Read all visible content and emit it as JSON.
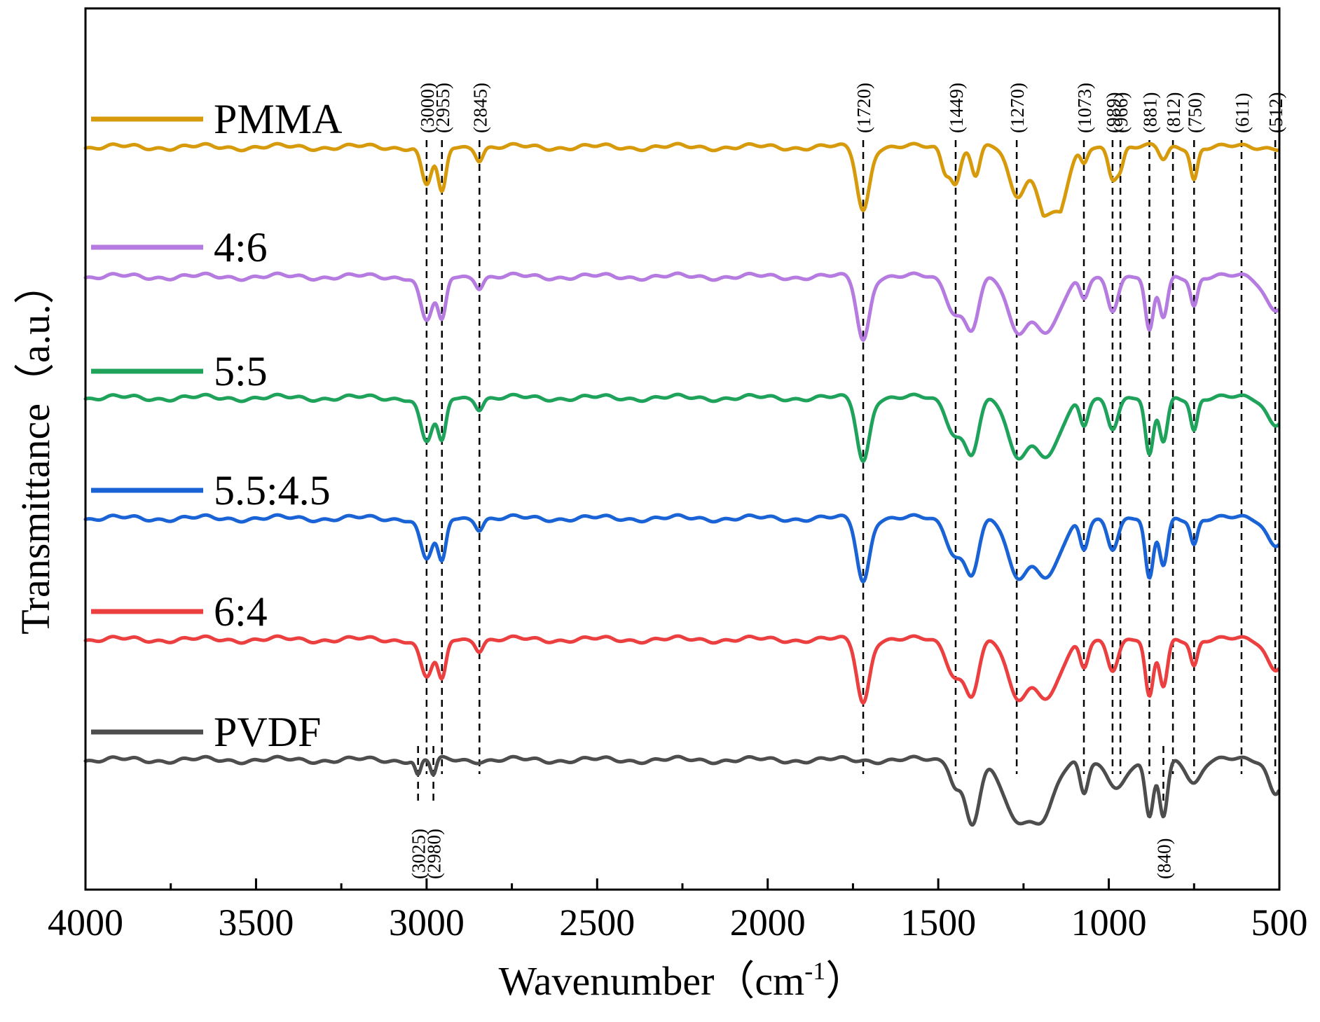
{
  "chart_data": {
    "type": "line",
    "title": "",
    "xlabel": "Wavenumber（cm",
    "xlabel_sup": "-1",
    "xlabel_close": "）",
    "ylabel": "Transmittance（a.u.）",
    "xlim": [
      4000,
      500
    ],
    "x_ticks": [
      {
        "value": 4000,
        "label": "4000"
      },
      {
        "value": 3500,
        "label": "3500"
      },
      {
        "value": 3000,
        "label": "3000"
      },
      {
        "value": 2500,
        "label": "2500"
      },
      {
        "value": 2000,
        "label": "2000"
      },
      {
        "value": 1500,
        "label": "1500"
      },
      {
        "value": 1000,
        "label": "1000"
      },
      {
        "value": 500,
        "label": "500"
      }
    ],
    "legend_position": "left, stacked beside each curve",
    "series": [
      {
        "name": "PMMA",
        "color": "#d69a0b",
        "offset": 5,
        "amp": 1.0,
        "dips": [
          [
            3000,
            0.6,
            15
          ],
          [
            2955,
            0.75,
            12
          ],
          [
            2845,
            0.18,
            10
          ],
          [
            1720,
            1.0,
            18
          ],
          [
            1480,
            0.35,
            12
          ],
          [
            1449,
            0.55,
            14
          ],
          [
            1390,
            0.45,
            12
          ],
          [
            1270,
            0.75,
            25
          ],
          [
            1190,
            0.7,
            30
          ],
          [
            1150,
            0.9,
            30
          ],
          [
            1073,
            0.25,
            10
          ],
          [
            989,
            0.45,
            12
          ],
          [
            966,
            0.3,
            10
          ],
          [
            840,
            0.2,
            12
          ],
          [
            750,
            0.5,
            10
          ]
        ]
      },
      {
        "name": "4:6",
        "color": "#b57be0",
        "offset": 4,
        "amp": 1.0,
        "dips": [
          [
            3000,
            0.7,
            18
          ],
          [
            2955,
            0.7,
            12
          ],
          [
            2845,
            0.15,
            10
          ],
          [
            1720,
            1.0,
            18
          ],
          [
            1450,
            0.55,
            25
          ],
          [
            1400,
            0.75,
            20
          ],
          [
            1270,
            0.8,
            30
          ],
          [
            1180,
            0.85,
            40
          ],
          [
            1073,
            0.35,
            12
          ],
          [
            989,
            0.5,
            15
          ],
          [
            881,
            0.9,
            12
          ],
          [
            840,
            0.65,
            12
          ],
          [
            750,
            0.45,
            10
          ],
          [
            512,
            0.5,
            30
          ]
        ]
      },
      {
        "name": "5:5",
        "color": "#1fa35a",
        "offset": 3,
        "amp": 1.0,
        "dips": [
          [
            3000,
            0.7,
            18
          ],
          [
            2955,
            0.7,
            12
          ],
          [
            2845,
            0.15,
            10
          ],
          [
            1720,
            1.0,
            18
          ],
          [
            1450,
            0.55,
            25
          ],
          [
            1400,
            0.8,
            20
          ],
          [
            1270,
            0.85,
            30
          ],
          [
            1180,
            0.9,
            40
          ],
          [
            1073,
            0.45,
            12
          ],
          [
            989,
            0.45,
            15
          ],
          [
            881,
            0.95,
            12
          ],
          [
            840,
            0.7,
            12
          ],
          [
            750,
            0.5,
            10
          ],
          [
            512,
            0.4,
            25
          ]
        ]
      },
      {
        "name": "5.5:4.5",
        "color": "#1a63d6",
        "offset": 2,
        "amp": 1.0,
        "dips": [
          [
            3000,
            0.65,
            18
          ],
          [
            2955,
            0.7,
            12
          ],
          [
            2845,
            0.15,
            10
          ],
          [
            1720,
            1.0,
            18
          ],
          [
            1450,
            0.55,
            25
          ],
          [
            1400,
            0.8,
            20
          ],
          [
            1270,
            0.85,
            30
          ],
          [
            1180,
            0.9,
            40
          ],
          [
            1073,
            0.5,
            12
          ],
          [
            989,
            0.45,
            15
          ],
          [
            881,
            1.0,
            12
          ],
          [
            840,
            0.75,
            12
          ],
          [
            750,
            0.4,
            10
          ],
          [
            512,
            0.4,
            25
          ]
        ]
      },
      {
        "name": "6:4",
        "color": "#ec3f3f",
        "offset": 1,
        "amp": 1.0,
        "dips": [
          [
            3000,
            0.6,
            18
          ],
          [
            2955,
            0.65,
            12
          ],
          [
            2845,
            0.15,
            10
          ],
          [
            1720,
            1.0,
            18
          ],
          [
            1450,
            0.55,
            25
          ],
          [
            1400,
            0.8,
            20
          ],
          [
            1270,
            0.85,
            30
          ],
          [
            1180,
            0.9,
            40
          ],
          [
            1073,
            0.45,
            12
          ],
          [
            989,
            0.45,
            15
          ],
          [
            881,
            0.95,
            12
          ],
          [
            840,
            0.75,
            12
          ],
          [
            750,
            0.4,
            10
          ],
          [
            512,
            0.45,
            25
          ]
        ]
      },
      {
        "name": "PVDF",
        "color": "#4d4d4d",
        "offset": 0,
        "amp": 1.0,
        "dips": [
          [
            3025,
            0.25,
            8
          ],
          [
            2980,
            0.25,
            8
          ],
          [
            1450,
            0.35,
            15
          ],
          [
            1400,
            1.0,
            22
          ],
          [
            1280,
            0.8,
            35
          ],
          [
            1200,
            0.9,
            40
          ],
          [
            1073,
            0.55,
            12
          ],
          [
            975,
            0.4,
            30
          ],
          [
            881,
            0.95,
            12
          ],
          [
            840,
            0.9,
            12
          ],
          [
            750,
            0.35,
            20
          ],
          [
            512,
            0.5,
            20
          ]
        ]
      }
    ],
    "peak_markers": [
      {
        "value": 3000,
        "label": "(3000)",
        "side": "top",
        "from": 0,
        "to": 5
      },
      {
        "value": 2955,
        "label": "(2955)",
        "side": "top",
        "from": 0,
        "to": 5
      },
      {
        "value": 2845,
        "label": "(2845)",
        "side": "top",
        "from": 0,
        "to": 5
      },
      {
        "value": 1720,
        "label": "(1720)",
        "side": "top",
        "from": 1,
        "to": 5
      },
      {
        "value": 1449,
        "label": "(1449)",
        "side": "top",
        "from": 0,
        "to": 5
      },
      {
        "value": 1270,
        "label": "(1270)",
        "side": "top",
        "from": 0,
        "to": 5
      },
      {
        "value": 1073,
        "label": "(1073)",
        "side": "top",
        "from": 0,
        "to": 5
      },
      {
        "value": 989,
        "label": "(989)",
        "side": "top",
        "from": 0,
        "to": 5
      },
      {
        "value": 966,
        "label": "(966)",
        "side": "top",
        "from": 0,
        "to": 5
      },
      {
        "value": 881,
        "label": "(881)",
        "side": "top",
        "from": 0,
        "to": 5
      },
      {
        "value": 812,
        "label": "(812)",
        "side": "top",
        "from": 0,
        "to": 5
      },
      {
        "value": 750,
        "label": "(750)",
        "side": "top",
        "from": 1,
        "to": 5
      },
      {
        "value": 611,
        "label": "(611)",
        "side": "top",
        "from": 0,
        "to": 5
      },
      {
        "value": 512,
        "label": "(512)",
        "side": "top",
        "from": 0,
        "to": 5
      },
      {
        "value": 3025,
        "label": "(3025)",
        "side": "bottom",
        "from": 0,
        "to": 0
      },
      {
        "value": 2980,
        "label": "(2980)",
        "side": "bottom",
        "from": 0,
        "to": 0
      },
      {
        "value": 840,
        "label": "(840)",
        "side": "bottom",
        "from": 0,
        "to": 0
      }
    ]
  }
}
